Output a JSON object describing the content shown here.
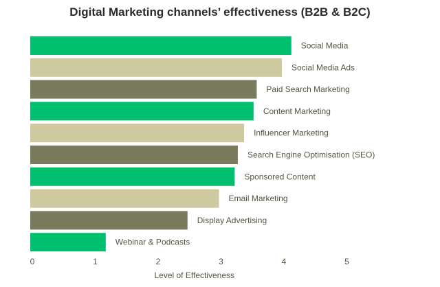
{
  "chart_data": {
    "type": "bar",
    "orientation": "horizontal",
    "title": "Digital Marketing channels’ effectiveness (B2B & B2C)",
    "xlabel": "Level of Effectiveness",
    "ylabel": "",
    "xlim": [
      0,
      5
    ],
    "xticks": [
      "0",
      "1",
      "2",
      "3",
      "4",
      "5"
    ],
    "grid": false,
    "legend": "none",
    "categories": [
      "Social Media",
      "Social Media Ads",
      "Paid Search Marketing",
      "Content Marketing",
      "Influencer Marketing",
      "Search Engine Optimisation (SEO)",
      "Sponsored Content",
      "Email Marketing",
      "Display Advertising",
      "Webinar & Podcasts"
    ],
    "values": [
      4.15,
      4.0,
      3.6,
      3.55,
      3.4,
      3.3,
      3.25,
      3.0,
      2.5,
      1.2
    ],
    "bar_colors": [
      "#00bf6f",
      "#cfc9a0",
      "#7a7a5c",
      "#00bf6f",
      "#cfc9a0",
      "#7a7a5c",
      "#00bf6f",
      "#cfc9a0",
      "#7a7a5c",
      "#00bf6f"
    ]
  }
}
